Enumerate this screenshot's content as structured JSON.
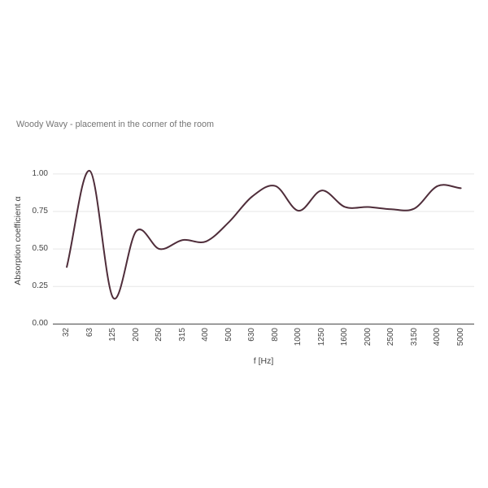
{
  "chart_data": {
    "type": "line",
    "title": "Woody Wavy - placement in the corner of the room",
    "xlabel": "f [Hz]",
    "ylabel": "Absorption coefficient α",
    "categories": [
      "32",
      "63",
      "125",
      "200",
      "250",
      "315",
      "400",
      "500",
      "630",
      "800",
      "1000",
      "1250",
      "1600",
      "2000",
      "2500",
      "3150",
      "4000",
      "5000"
    ],
    "values": [
      0.38,
      1.02,
      0.175,
      0.62,
      0.5,
      0.56,
      0.55,
      0.68,
      0.85,
      0.92,
      0.755,
      0.89,
      0.78,
      0.78,
      0.765,
      0.77,
      0.92,
      0.905
    ],
    "yticks": [
      "0.00",
      "0.25",
      "0.50",
      "0.75",
      "1.00"
    ],
    "ylim": [
      0,
      1
    ],
    "grid": true,
    "legend": "none",
    "line_color": "#4f2d3a",
    "gridline_color": "#e6e6e6",
    "axis_line_color": "#424242"
  }
}
